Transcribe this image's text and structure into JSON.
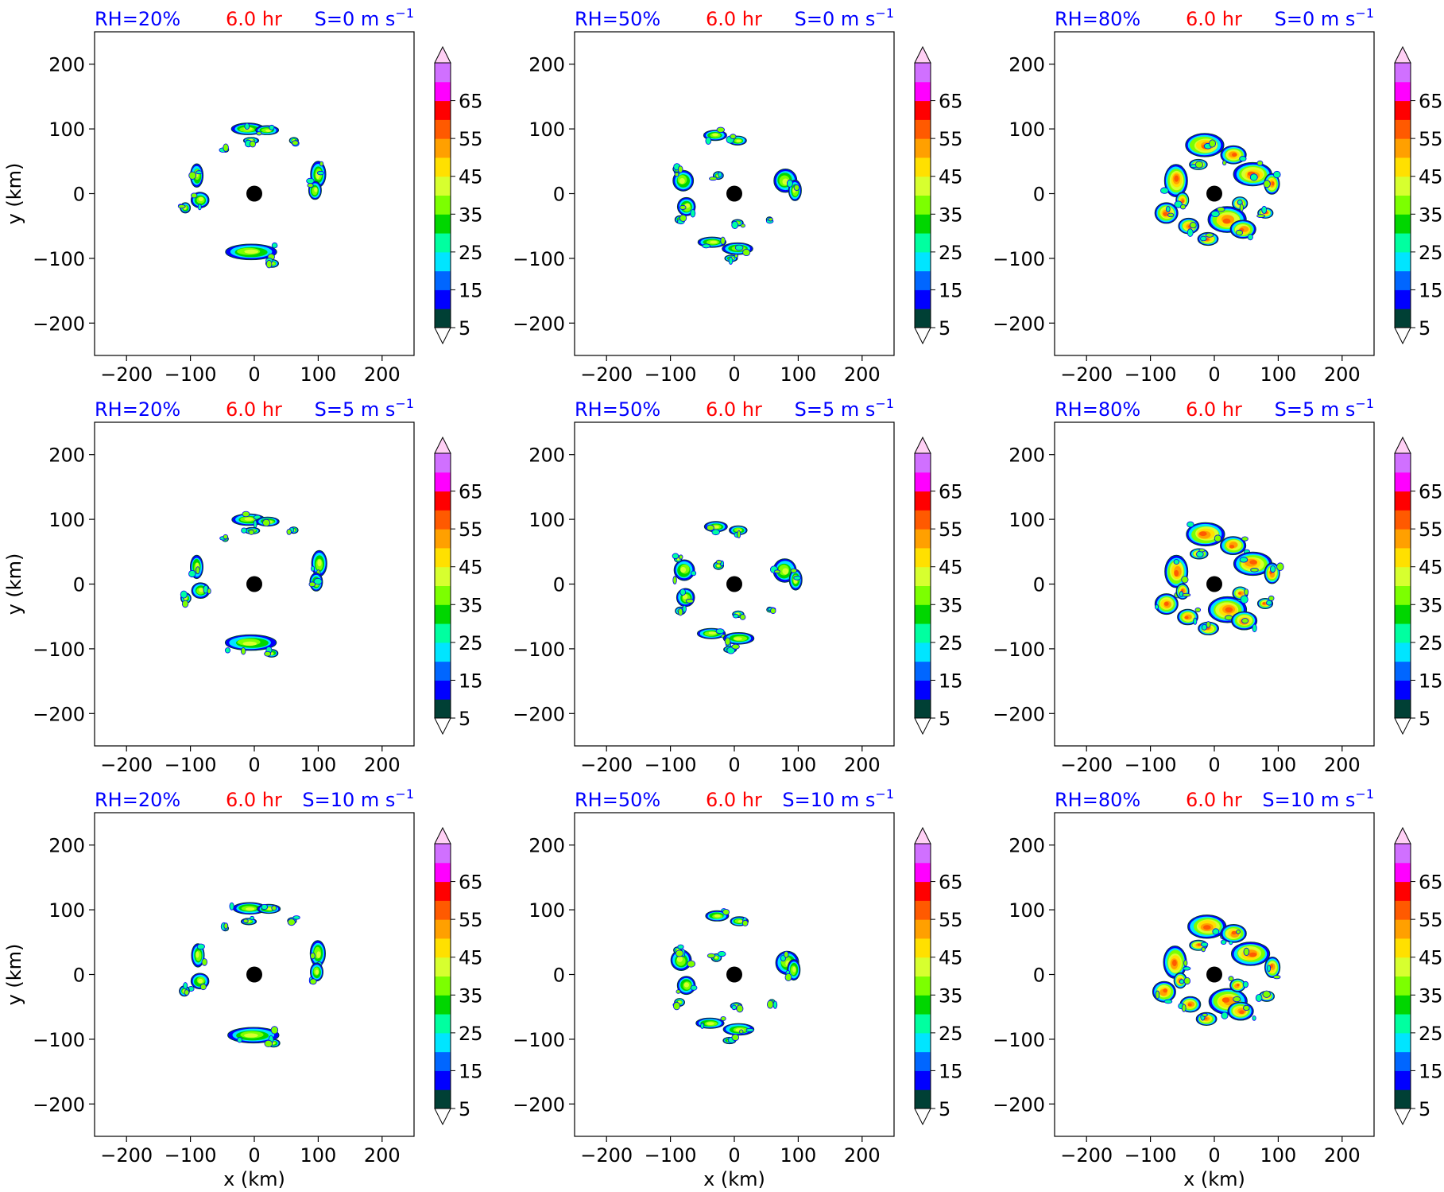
{
  "x_unit_label": "x (km)",
  "y_unit_label": "y (km)",
  "colors": {
    "title_blue": "#0000ff",
    "title_red": "#ff0000",
    "storm_center": "#000000"
  },
  "chart_data": {
    "type": "contour-map-grid",
    "time_label": "6.0 hr",
    "rh_labels": [
      "RH=20%",
      "RH=50%",
      "RH=80%"
    ],
    "shear_labels": [
      "S=0 m s",
      "S=5 m s",
      "S=10 m s"
    ],
    "shear_superscript": "−1",
    "xlabel": "x (km)",
    "ylabel": "y (km)",
    "xlim": [
      -250,
      250
    ],
    "ylim": [
      -250,
      250
    ],
    "xticks": [
      -200,
      -100,
      0,
      100,
      200
    ],
    "yticks": [
      -200,
      -100,
      0,
      100,
      200
    ],
    "xtick_labels": [
      "−200",
      "−100",
      "0",
      "100",
      "200"
    ],
    "ytick_labels": [
      "−200",
      "−100",
      "0",
      "100",
      "200"
    ],
    "storm_center": [
      0,
      0
    ],
    "colorbar": {
      "levels": [
        5,
        10,
        15,
        20,
        25,
        30,
        35,
        40,
        45,
        50,
        55,
        60,
        65,
        70
      ],
      "tick_labels": [
        "5",
        "15",
        "25",
        "35",
        "45",
        "55",
        "65"
      ],
      "tick_values": [
        5,
        15,
        25,
        35,
        45,
        55,
        65
      ],
      "colors": [
        "#004035",
        "#0000ff",
        "#0066ff",
        "#00e5ff",
        "#00ffa0",
        "#00d600",
        "#7cff00",
        "#d7ff2f",
        "#ffe000",
        "#ffa000",
        "#ff5a00",
        "#ff0000",
        "#ff00ff",
        "#d070ff"
      ],
      "extend": "both",
      "under_color": "#ffffff",
      "over_color": "#ffd0f5"
    },
    "panels": [
      {
        "rh": "RH=20%",
        "shear": "S=0 m s"
      },
      {
        "rh": "RH=50%",
        "shear": "S=0 m s"
      },
      {
        "rh": "RH=80%",
        "shear": "S=0 m s"
      },
      {
        "rh": "RH=20%",
        "shear": "S=5 m s"
      },
      {
        "rh": "RH=50%",
        "shear": "S=5 m s"
      },
      {
        "rh": "RH=80%",
        "shear": "S=5 m s"
      },
      {
        "rh": "RH=20%",
        "shear": "S=10 m s"
      },
      {
        "rh": "RH=50%",
        "shear": "S=10 m s"
      },
      {
        "rh": "RH=80%",
        "shear": "S=10 m s"
      }
    ]
  }
}
